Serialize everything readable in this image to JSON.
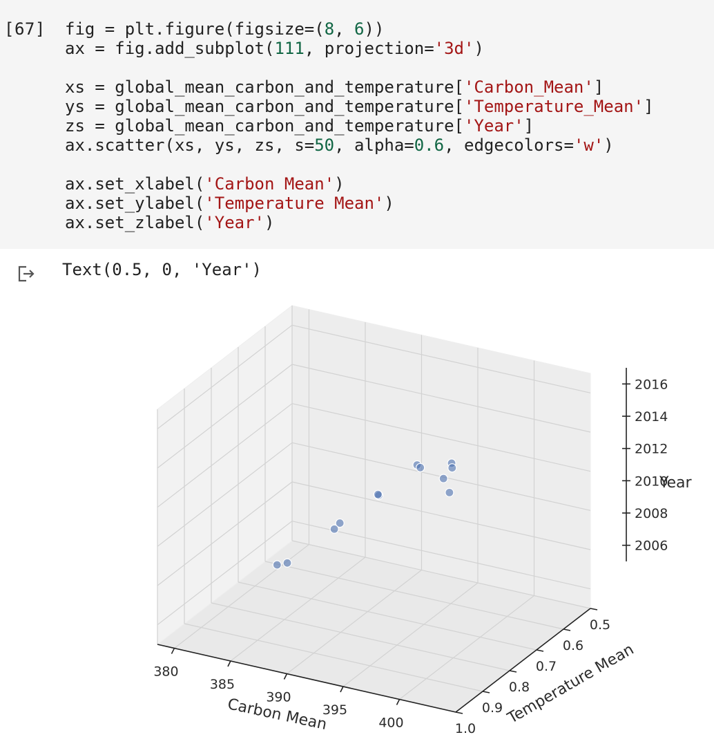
{
  "cell": {
    "prompt": "[67]",
    "code_lines": [
      [
        {
          "t": "fig = plt.figure(figsize=("
        },
        {
          "t": "8",
          "c": "num"
        },
        {
          "t": ", "
        },
        {
          "t": "6",
          "c": "num"
        },
        {
          "t": "))"
        }
      ],
      [
        {
          "t": "ax = fig.add_subplot("
        },
        {
          "t": "111",
          "c": "num"
        },
        {
          "t": ", projection="
        },
        {
          "t": "'3d'",
          "c": "str"
        },
        {
          "t": ")"
        }
      ],
      [
        {
          "t": ""
        }
      ],
      [
        {
          "t": "xs = global_mean_carbon_and_temperature["
        },
        {
          "t": "'Carbon_Mean'",
          "c": "str"
        },
        {
          "t": "]"
        }
      ],
      [
        {
          "t": "ys = global_mean_carbon_and_temperature["
        },
        {
          "t": "'Temperature_Mean'",
          "c": "str"
        },
        {
          "t": "]"
        }
      ],
      [
        {
          "t": "zs = global_mean_carbon_and_temperature["
        },
        {
          "t": "'Year'",
          "c": "str"
        },
        {
          "t": "]"
        }
      ],
      [
        {
          "t": "ax.scatter(xs, ys, zs, s="
        },
        {
          "t": "50",
          "c": "num"
        },
        {
          "t": ", alpha="
        },
        {
          "t": "0.6",
          "c": "num"
        },
        {
          "t": ", edgecolors="
        },
        {
          "t": "'w'",
          "c": "str"
        },
        {
          "t": ")"
        }
      ],
      [
        {
          "t": ""
        }
      ],
      [
        {
          "t": "ax.set_xlabel("
        },
        {
          "t": "'Carbon Mean'",
          "c": "str"
        },
        {
          "t": ")"
        }
      ],
      [
        {
          "t": "ax.set_ylabel("
        },
        {
          "t": "'Temperature Mean'",
          "c": "str"
        },
        {
          "t": ")"
        }
      ],
      [
        {
          "t": "ax.set_zlabel("
        },
        {
          "t": "'Year'",
          "c": "str"
        },
        {
          "t": ")"
        }
      ]
    ]
  },
  "output": {
    "icon": "output-arrow-icon",
    "text": "Text(0.5, 0, 'Year')"
  },
  "colors": {
    "cell_bg": "#f5f5f5",
    "string": "#a31515",
    "number": "#116644",
    "marker": "#4c72b0"
  },
  "chart_data": {
    "type": "scatter",
    "projection": "3d",
    "xlabel": "Carbon Mean",
    "ylabel": "Temperature Mean",
    "zlabel": "Year",
    "x_ticks": [
      "380",
      "385",
      "390",
      "395",
      "400"
    ],
    "y_ticks": [
      "0.5",
      "0.6",
      "0.7",
      "0.8",
      "0.9",
      "1.0"
    ],
    "z_ticks": [
      "2006",
      "2008",
      "2010",
      "2012",
      "2014",
      "2016"
    ],
    "xlim": [
      378.5,
      405
    ],
    "ylim": [
      0.5,
      1.0
    ],
    "zlim": [
      2005,
      2017
    ],
    "grid": true,
    "points": [
      {
        "x": 379.8,
        "y": 0.61,
        "z": 2005.1
      },
      {
        "x": 381.9,
        "y": 0.66,
        "z": 2006.0
      },
      {
        "x": 383.7,
        "y": 0.54,
        "z": 2007.0
      },
      {
        "x": 385.6,
        "y": 0.64,
        "z": 2008.0
      },
      {
        "x": 387.4,
        "y": 0.55,
        "z": 2009.0
      },
      {
        "x": 389.0,
        "y": 0.62,
        "z": 2010.0
      },
      {
        "x": 390.8,
        "y": 0.55,
        "z": 2011.0
      },
      {
        "x": 393.0,
        "y": 0.63,
        "z": 2012.0
      },
      {
        "x": 396.5,
        "y": 0.66,
        "z": 2013.0
      },
      {
        "x": 398.7,
        "y": 0.75,
        "z": 2014.0
      },
      {
        "x": 400.8,
        "y": 0.87,
        "z": 2015.0
      },
      {
        "x": 404.2,
        "y": 0.99,
        "z": 2016.0
      }
    ]
  }
}
